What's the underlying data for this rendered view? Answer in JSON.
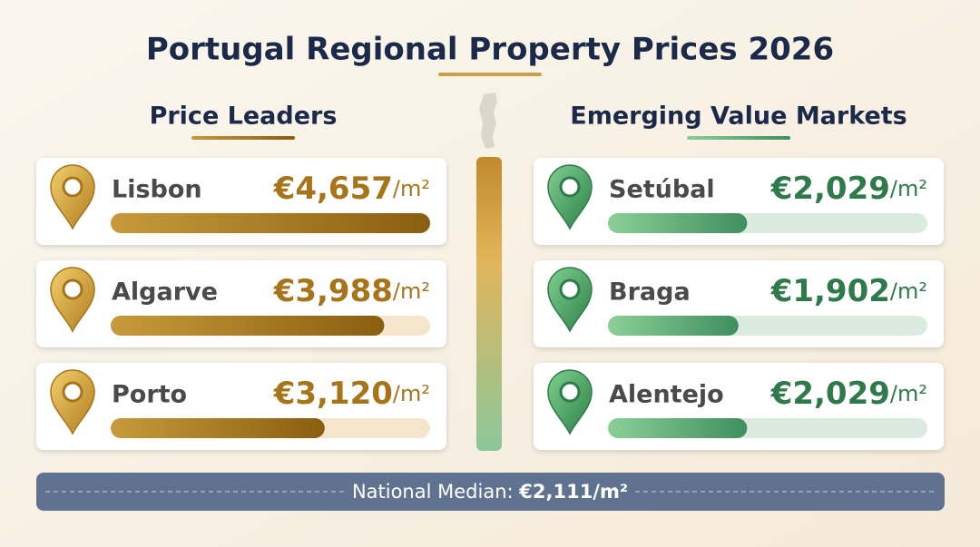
{
  "title": "Portugal Regional Property Prices 2026",
  "unit": "/m²",
  "panels": [
    {
      "heading": "Price Leaders",
      "color": "#a8741a",
      "items": [
        {
          "name": "Lisbon",
          "value": 4657,
          "value_label": "€4,657"
        },
        {
          "name": "Algarve",
          "value": 3988,
          "value_label": "€3,988"
        },
        {
          "name": "Porto",
          "value": 3120,
          "value_label": "€3,120"
        }
      ]
    },
    {
      "heading": "Emerging Value Markets",
      "color": "#2f7a4a",
      "items": [
        {
          "name": "Setúbal",
          "value": 2029,
          "value_label": "€2,029"
        },
        {
          "name": "Braga",
          "value": 1902,
          "value_label": "€1,902"
        },
        {
          "name": "Alentejo",
          "value": 2029,
          "value_label": "€2,029"
        }
      ]
    }
  ],
  "median": {
    "label": "National Median:",
    "value": "€2,111/m²"
  }
}
